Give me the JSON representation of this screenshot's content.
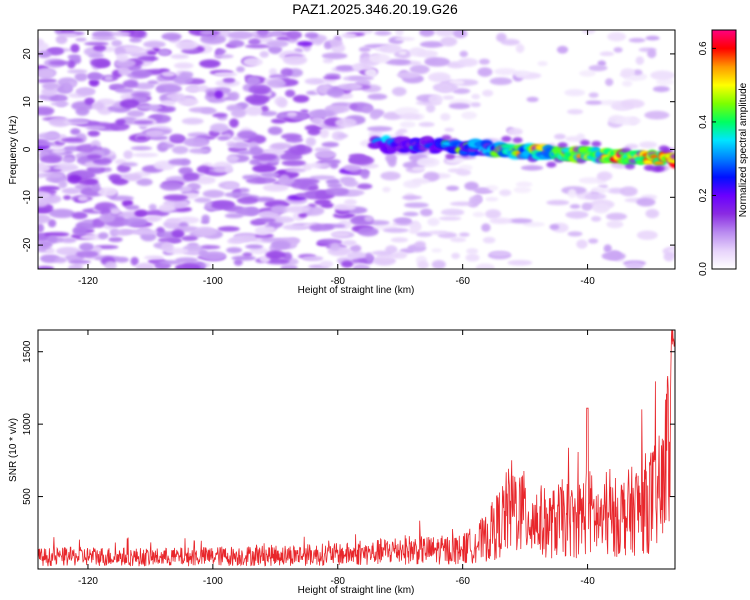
{
  "title": "PAZ1.2025.346.20.19.G26",
  "chart_data": [
    {
      "type": "heatmap",
      "xlabel": "Height of straight line (km)",
      "ylabel": "Frequency (Hz)",
      "xlim": [
        -128,
        -26
      ],
      "ylim": [
        -25,
        25
      ],
      "xticks": [
        -120,
        -100,
        -80,
        -60,
        -40
      ],
      "yticks": [
        -20,
        -10,
        0,
        10,
        20
      ],
      "colorbar": {
        "label": "Normalized spectral amplitude",
        "range": [
          0.0,
          0.65
        ],
        "ticks": [
          0.0,
          0.2,
          0.4,
          0.6
        ],
        "colormap": [
          "#ffffff",
          "#e7d3fb",
          "#b98af0",
          "#8a2be2",
          "#6a00ff",
          "#0010ff",
          "#0080ff",
          "#00e5ff",
          "#00ff60",
          "#7dff00",
          "#ffff00",
          "#ff9900",
          "#ff0000",
          "#ff0080"
        ]
      },
      "ridge": {
        "description_points": [
          {
            "height": -72,
            "frequency": 1.0
          },
          {
            "height": -60,
            "frequency": 0.5
          },
          {
            "height": -50,
            "frequency": -0.5
          },
          {
            "height": -40,
            "frequency": -1.0
          },
          {
            "height": -26,
            "frequency": -2.0
          }
        ]
      }
    },
    {
      "type": "line",
      "xlabel": "Height of straight line (km)",
      "ylabel": "SNR (10 * v/v)",
      "xlim": [
        -128,
        -26
      ],
      "ylim": [
        0,
        1650
      ],
      "xticks": [
        -120,
        -100,
        -80,
        -60,
        -40
      ],
      "yticks": [
        500,
        1000,
        1500
      ],
      "color": "#e8262b",
      "series": [
        {
          "x": [
            -128,
            -120,
            -110,
            -100,
            -90,
            -80,
            -75,
            -70,
            -65,
            -60,
            -56,
            -54,
            -52,
            -50,
            -48,
            -46,
            -44,
            -42,
            -40,
            -38,
            -36,
            -34,
            -32,
            -30,
            -29,
            -28,
            -27,
            -26
          ],
          "values": [
            120,
            130,
            120,
            130,
            140,
            150,
            160,
            200,
            190,
            200,
            320,
            480,
            650,
            560,
            500,
            450,
            520,
            480,
            600,
            480,
            520,
            560,
            620,
            700,
            750,
            800,
            1300,
            1550
          ]
        }
      ]
    }
  ]
}
